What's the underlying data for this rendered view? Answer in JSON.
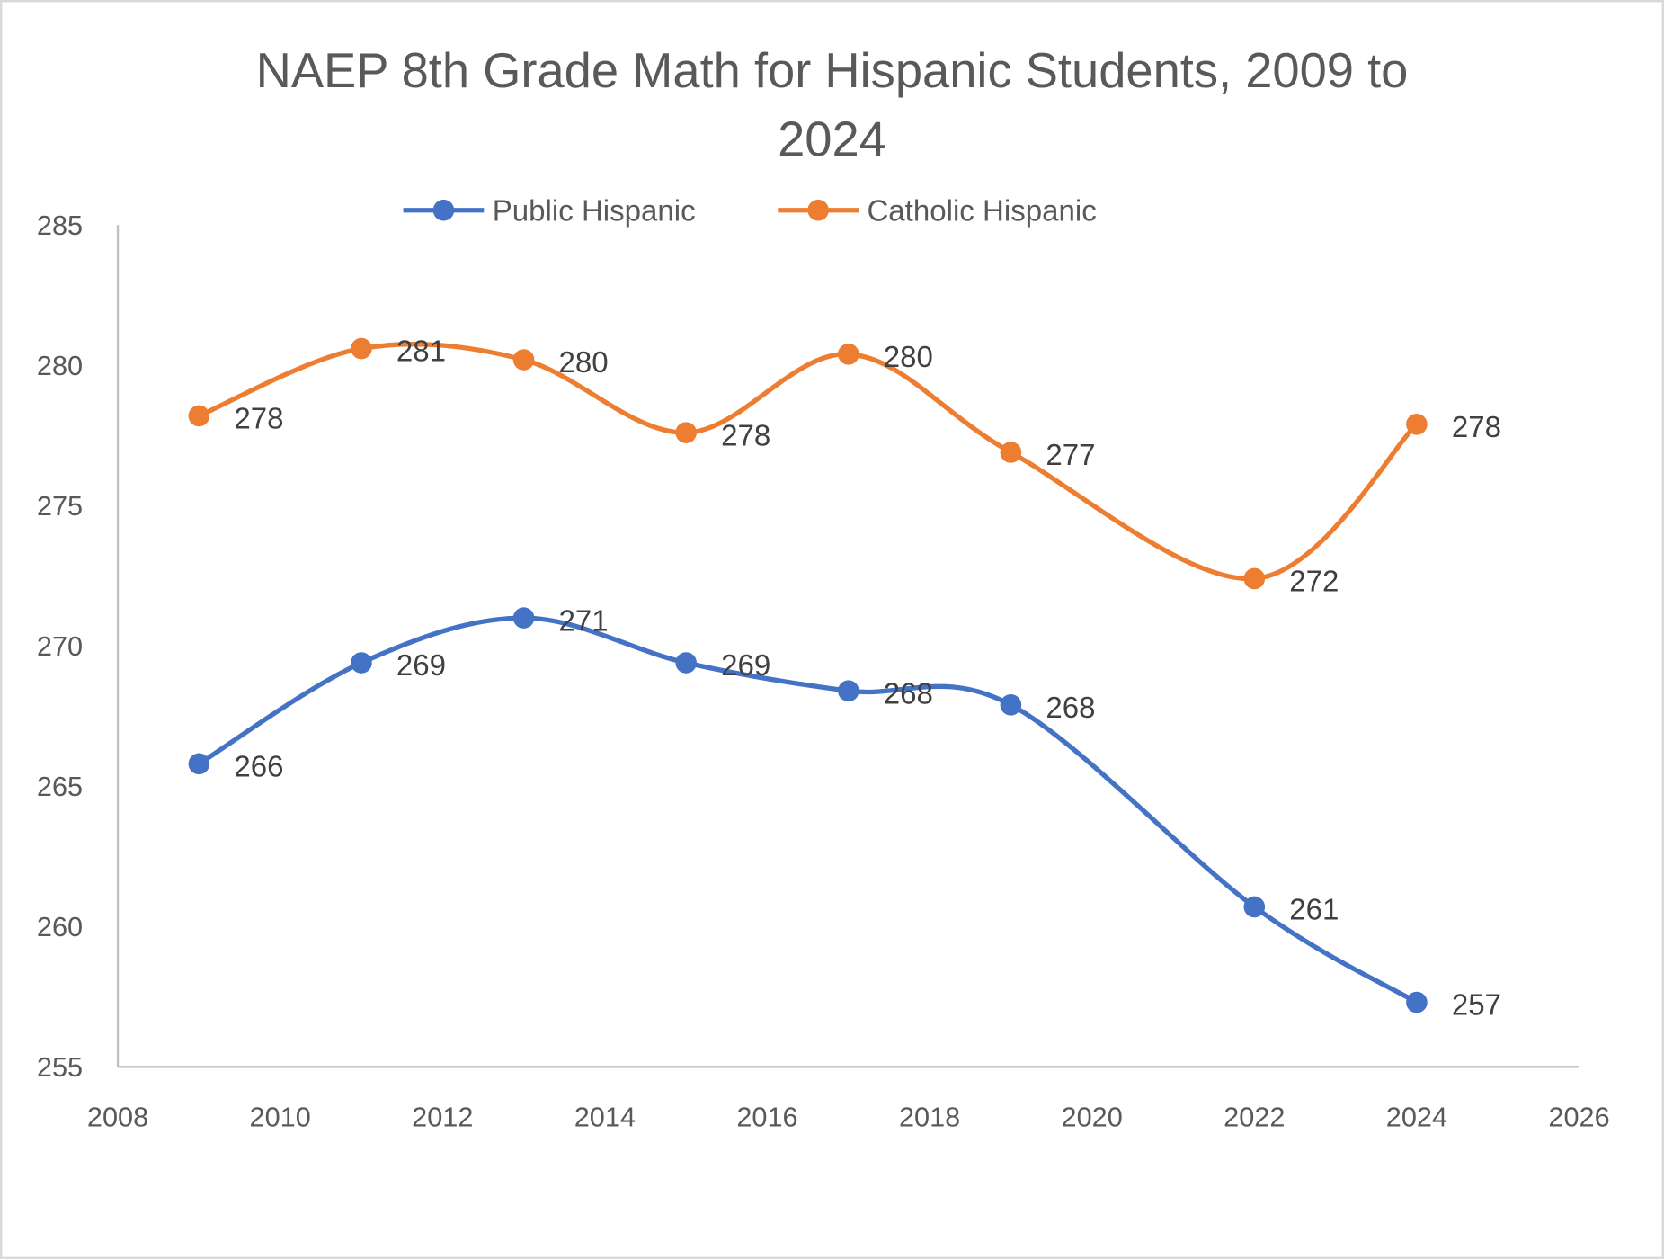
{
  "chart_data": {
    "type": "line",
    "title_lines": [
      "NAEP 8th Grade Math for Hispanic Students, 2009 to",
      "2024"
    ],
    "xlabel": "",
    "ylabel": "",
    "xlim": [
      2008,
      2026
    ],
    "ylim": [
      255,
      285
    ],
    "x_ticks": [
      "2008",
      "2010",
      "2012",
      "2014",
      "2016",
      "2018",
      "2020",
      "2022",
      "2024",
      "2026"
    ],
    "y_ticks": [
      "255",
      "260",
      "265",
      "270",
      "275",
      "280",
      "285"
    ],
    "grid": false,
    "legend_position": "top",
    "x": [
      2009,
      2011,
      2013,
      2015,
      2017,
      2019,
      2022,
      2024
    ],
    "series": [
      {
        "name": "Public Hispanic",
        "color": "#4472C4",
        "values": [
          265.8,
          269.4,
          271.0,
          269.4,
          268.4,
          267.9,
          260.7,
          257.3
        ],
        "labels": [
          "266",
          "269",
          "271",
          "269",
          "268",
          "268",
          "261",
          "257"
        ]
      },
      {
        "name": "Catholic Hispanic",
        "color": "#ED7D31",
        "values": [
          278.2,
          280.6,
          280.2,
          277.6,
          280.4,
          276.9,
          272.4,
          277.9
        ],
        "labels": [
          "278",
          "281",
          "280",
          "278",
          "280",
          "277",
          "272",
          "278"
        ]
      }
    ]
  }
}
